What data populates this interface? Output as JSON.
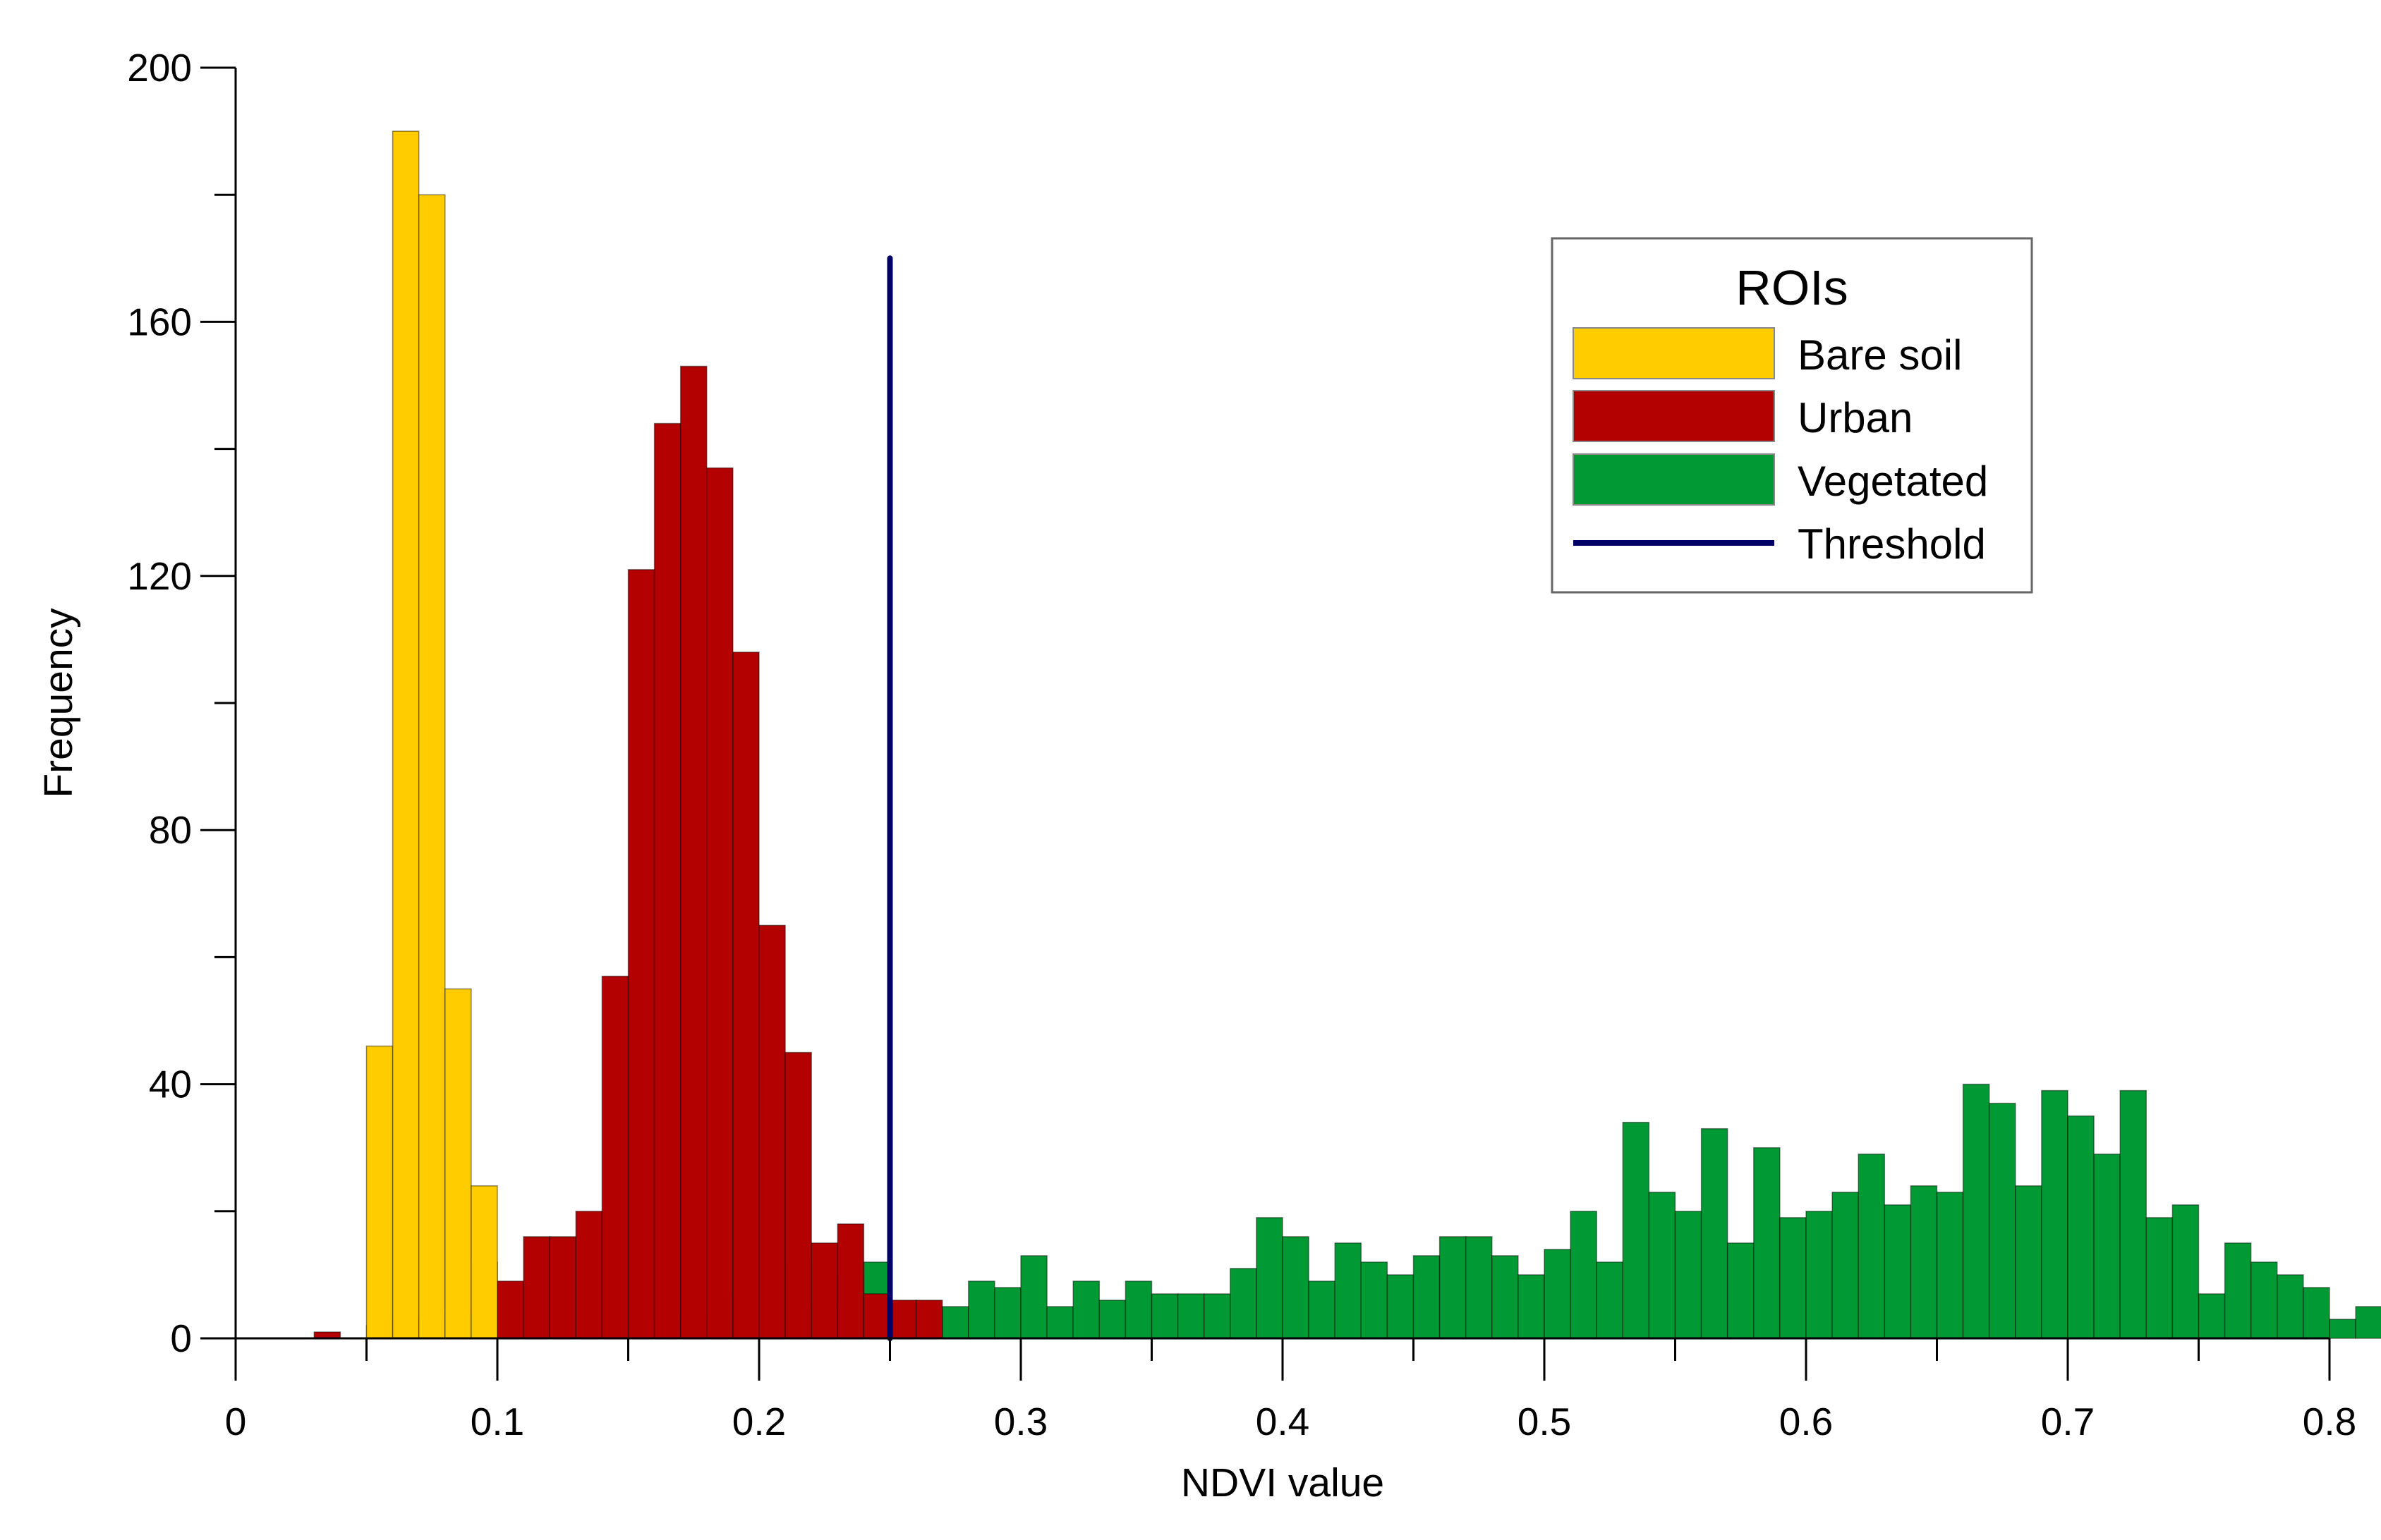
{
  "chart_data": {
    "type": "bar",
    "subtype": "overlapping-histogram",
    "title": "",
    "xlabel": "NDVI value",
    "ylabel": "Frequency",
    "xlim": [
      0,
      0.8
    ],
    "ylim": [
      0,
      200
    ],
    "x_ticks": [
      0,
      0.1,
      0.2,
      0.3,
      0.4,
      0.5,
      0.6,
      0.7,
      0.8
    ],
    "x_tick_labels": [
      "0",
      "0.1",
      "0.2",
      "0.3",
      "0.4",
      "0.5",
      "0.6",
      "0.7",
      "0.8"
    ],
    "y_ticks": [
      0,
      40,
      80,
      120,
      160,
      200
    ],
    "y_tick_labels": [
      "0",
      "40",
      "80",
      "120",
      "160",
      "200"
    ],
    "y_minor_ticks": [
      20,
      60,
      100,
      140,
      180
    ],
    "x_minor_ticks": [
      0.05,
      0.15,
      0.25,
      0.35,
      0.45,
      0.55,
      0.65,
      0.75
    ],
    "bin_width": 0.01,
    "series": [
      {
        "name": "Vegetated",
        "color": "#009933",
        "bin_start": 0.16,
        "values": [
          3,
          1,
          3,
          7,
          7,
          12,
          5,
          10,
          12,
          5,
          5,
          5,
          9,
          8,
          13,
          5,
          9,
          6,
          9,
          7,
          7,
          7,
          11,
          19,
          16,
          9,
          15,
          12,
          10,
          13,
          16,
          16,
          13,
          10,
          14,
          20,
          12,
          34,
          23,
          20,
          33,
          15,
          30,
          19,
          20,
          23,
          29,
          21,
          24,
          23,
          40,
          37,
          24,
          39,
          35,
          29,
          39,
          19,
          21,
          7,
          15,
          12,
          10,
          8,
          3,
          5
        ]
      },
      {
        "name": "Urban",
        "color": "#b30000",
        "bin_start": 0.03,
        "values": [
          1,
          0,
          2,
          3,
          3,
          4,
          12,
          9,
          16,
          16,
          20,
          57,
          121,
          144,
          153,
          137,
          108,
          65,
          45,
          15,
          18,
          7,
          6,
          6
        ]
      },
      {
        "name": "Bare soil",
        "color": "#ffcc00",
        "bin_start": 0.05,
        "values": [
          46,
          190,
          180,
          55,
          24
        ]
      }
    ],
    "threshold": {
      "name": "Threshold",
      "x": 0.25,
      "y_top": 170,
      "color": "#000066"
    },
    "legend": {
      "title": "ROIs",
      "position": "top-right",
      "entries": [
        {
          "label": "Bare soil",
          "color": "#ffcc00",
          "kind": "patch"
        },
        {
          "label": "Urban",
          "color": "#b30000",
          "kind": "patch"
        },
        {
          "label": "Vegetated",
          "color": "#009933",
          "kind": "patch"
        },
        {
          "label": "Threshold",
          "color": "#000066",
          "kind": "line"
        }
      ]
    }
  }
}
